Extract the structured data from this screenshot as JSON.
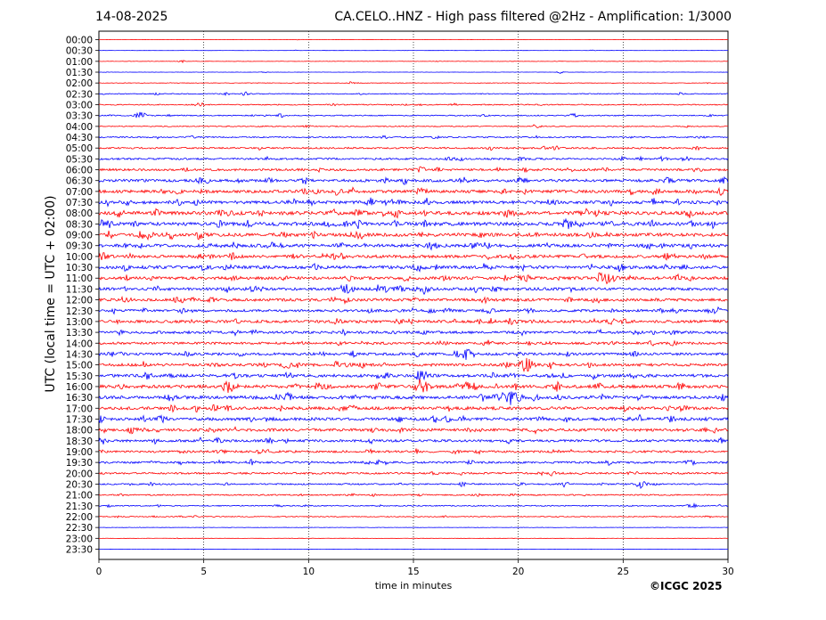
{
  "header": {
    "date": "14-08-2025",
    "title": "CA.CELO..HNZ - High pass filtered @2Hz - Amplification: 1/3000"
  },
  "footer": {
    "copyright": "©ICGC 2025"
  },
  "chart_data": {
    "type": "line",
    "title": "CA.CELO..HNZ - High pass filtered @2Hz - Amplification: 1/3000",
    "xlabel": "time in minutes",
    "ylabel": "UTC (local time = UTC + 02:00)",
    "xlim": [
      0,
      30
    ],
    "xticks": [
      0,
      5,
      10,
      15,
      20,
      25,
      30
    ],
    "grid": "vertical dotted lines at 5-minute intervals",
    "rows": [
      "00:00",
      "00:30",
      "01:00",
      "01:30",
      "02:00",
      "02:30",
      "03:00",
      "03:30",
      "04:00",
      "04:30",
      "05:00",
      "05:30",
      "06:00",
      "06:30",
      "07:00",
      "07:30",
      "08:00",
      "08:30",
      "09:00",
      "09:30",
      "10:00",
      "10:30",
      "11:00",
      "11:30",
      "12:00",
      "12:30",
      "13:00",
      "13:30",
      "14:00",
      "14:30",
      "15:00",
      "15:30",
      "16:00",
      "16:30",
      "17:00",
      "17:30",
      "18:00",
      "18:30",
      "19:00",
      "19:30",
      "20:00",
      "20:30",
      "21:00",
      "21:30",
      "22:00",
      "22:30",
      "23:00",
      "23:30"
    ],
    "trace_colors": [
      "#ff0000",
      "#0000ff"
    ],
    "noise_level": [
      0.15,
      0.12,
      0.2,
      0.15,
      0.25,
      0.5,
      0.6,
      0.6,
      0.5,
      0.7,
      0.9,
      1.0,
      1.2,
      1.5,
      1.6,
      1.7,
      1.9,
      1.9,
      1.8,
      1.7,
      1.6,
      1.7,
      1.6,
      1.5,
      1.5,
      1.4,
      1.5,
      1.4,
      1.3,
      1.4,
      1.5,
      1.6,
      1.7,
      1.7,
      1.6,
      1.6,
      1.5,
      1.3,
      1.2,
      1.1,
      1.0,
      0.8,
      0.7,
      0.6,
      0.5,
      0.2,
      0.15,
      0.12
    ],
    "events": [
      {
        "row": "00:30",
        "minute": 9.3,
        "amp": 1
      },
      {
        "row": "00:30",
        "minute": 23.5,
        "amp": 1
      },
      {
        "row": "01:00",
        "minute": 3.9,
        "amp": 2
      },
      {
        "row": "01:30",
        "minute": 21.9,
        "amp": 2
      },
      {
        "row": "02:00",
        "minute": 12.0,
        "amp": 2
      },
      {
        "row": "02:00",
        "minute": 29.0,
        "amp": 1
      },
      {
        "row": "02:30",
        "minute": 6.9,
        "amp": 3
      },
      {
        "row": "02:30",
        "minute": 27.7,
        "amp": 2
      },
      {
        "row": "03:00",
        "minute": 4.8,
        "amp": 3
      },
      {
        "row": "03:00",
        "minute": 16.8,
        "amp": 3
      },
      {
        "row": "03:30",
        "minute": 1.9,
        "amp": 5
      },
      {
        "row": "03:30",
        "minute": 8.6,
        "amp": 3
      },
      {
        "row": "03:30",
        "minute": 22.6,
        "amp": 3
      },
      {
        "row": "04:00",
        "minute": 20.8,
        "amp": 3
      },
      {
        "row": "04:00",
        "minute": 28.0,
        "amp": 2
      },
      {
        "row": "04:30",
        "minute": 13.6,
        "amp": 3
      },
      {
        "row": "04:30",
        "minute": 15.9,
        "amp": 2
      },
      {
        "row": "05:00",
        "minute": 17.3,
        "amp": 2
      },
      {
        "row": "05:30",
        "minute": 26.8,
        "amp": 3
      },
      {
        "row": "06:00",
        "minute": 19.0,
        "amp": 3
      },
      {
        "row": "06:30",
        "minute": 20.0,
        "amp": 4
      },
      {
        "row": "07:30",
        "minute": 14.2,
        "amp": 4
      },
      {
        "row": "08:00",
        "minute": 7.1,
        "amp": 3
      },
      {
        "row": "08:30",
        "minute": 7.1,
        "amp": 5
      },
      {
        "row": "09:30",
        "minute": 5.2,
        "amp": 4
      },
      {
        "row": "09:30",
        "minute": 24.4,
        "amp": 4
      },
      {
        "row": "10:00",
        "minute": 23.0,
        "amp": 4
      },
      {
        "row": "10:00",
        "minute": 27.3,
        "amp": 4
      },
      {
        "row": "10:30",
        "minute": 5.0,
        "amp": 4
      },
      {
        "row": "11:00",
        "minute": 6.4,
        "amp": 5
      },
      {
        "row": "11:00",
        "minute": 24.0,
        "amp": 10
      },
      {
        "row": "11:30",
        "minute": 11.7,
        "amp": 7
      },
      {
        "row": "11:30",
        "minute": 14.1,
        "amp": 5
      },
      {
        "row": "11:30",
        "minute": 15.5,
        "amp": 6
      },
      {
        "row": "12:00",
        "minute": 11.6,
        "amp": 5
      },
      {
        "row": "12:30",
        "minute": 15.8,
        "amp": 4
      },
      {
        "row": "13:00",
        "minute": 20.7,
        "amp": 4
      },
      {
        "row": "13:00",
        "minute": 25.0,
        "amp": 4
      },
      {
        "row": "14:30",
        "minute": 17.5,
        "amp": 7
      },
      {
        "row": "15:00",
        "minute": 20.3,
        "amp": 9
      },
      {
        "row": "15:30",
        "minute": 15.3,
        "amp": 8
      },
      {
        "row": "16:00",
        "minute": 6.1,
        "amp": 8
      },
      {
        "row": "16:00",
        "minute": 15.3,
        "amp": 9
      },
      {
        "row": "16:30",
        "minute": 19.6,
        "amp": 9
      },
      {
        "row": "16:30",
        "minute": 19.1,
        "amp": 7
      },
      {
        "row": "16:30",
        "minute": 21.9,
        "amp": 4
      },
      {
        "row": "17:00",
        "minute": 6.0,
        "amp": 5
      },
      {
        "row": "18:00",
        "minute": 28.9,
        "amp": 3
      },
      {
        "row": "19:30",
        "minute": 2.6,
        "amp": 3
      },
      {
        "row": "20:30",
        "minute": 17.3,
        "amp": 3
      },
      {
        "row": "20:30",
        "minute": 22.1,
        "amp": 4
      },
      {
        "row": "20:30",
        "minute": 25.8,
        "amp": 5
      },
      {
        "row": "21:00",
        "minute": 12.0,
        "amp": 3
      },
      {
        "row": "21:30",
        "minute": 8.5,
        "amp": 3
      },
      {
        "row": "21:30",
        "minute": 28.3,
        "amp": 3
      },
      {
        "row": "22:00",
        "minute": 29.0,
        "amp": 2
      },
      {
        "row": "23:00",
        "minute": 3.7,
        "amp": 1
      }
    ]
  }
}
